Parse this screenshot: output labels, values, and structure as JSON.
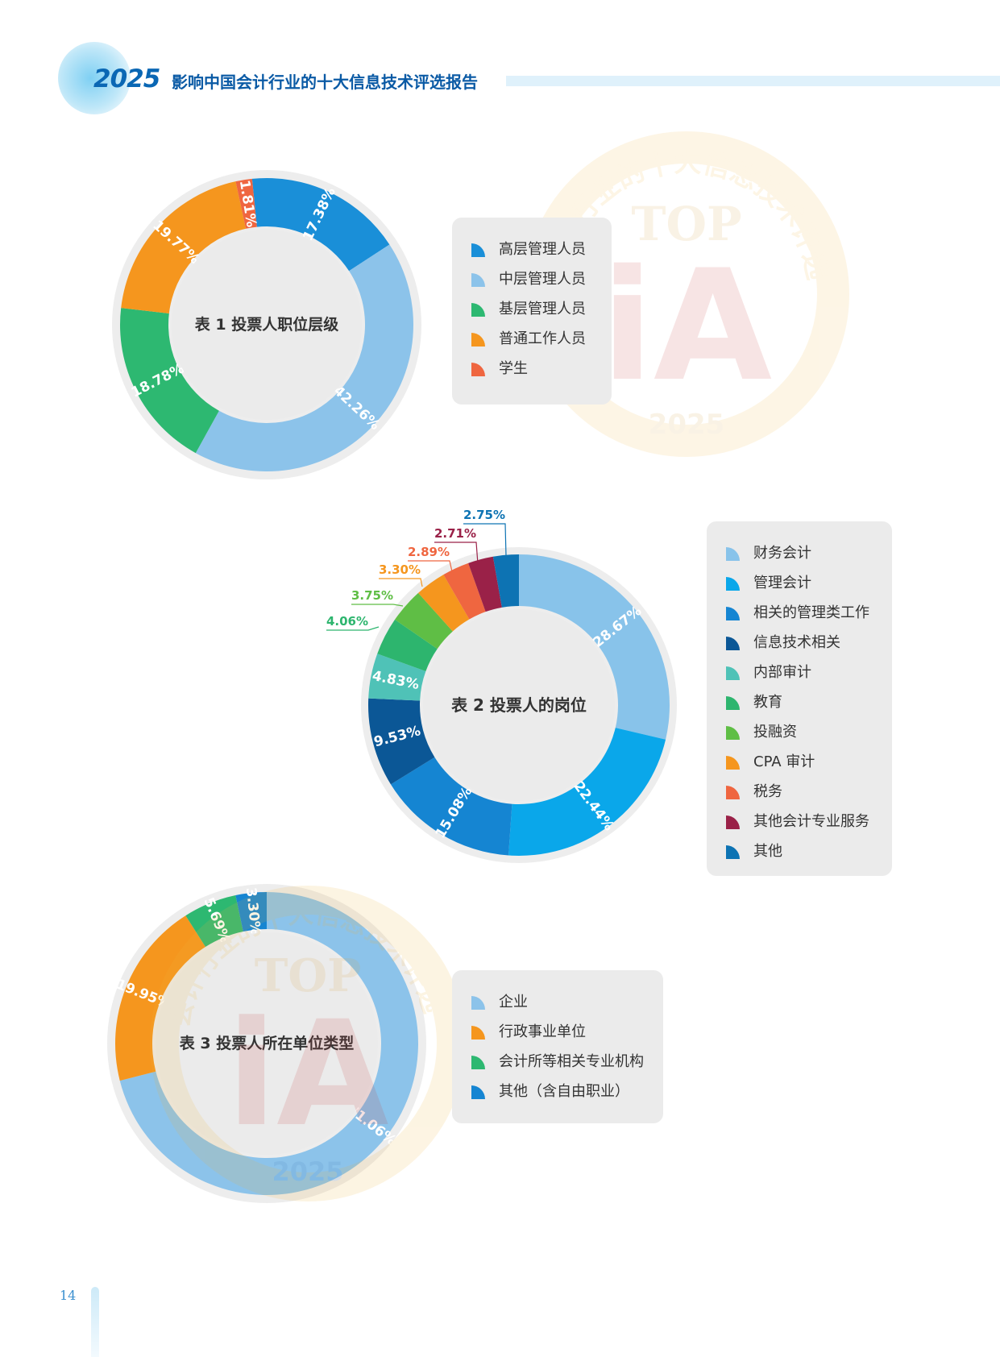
{
  "header": {
    "year": "2025",
    "title": "影响中国会计行业的十大信息技术评选报告"
  },
  "page_number": "14",
  "watermark": {
    "ring_text": "会计行业的十大信息技术评选",
    "logo_text_top": "TOP",
    "logo_text_main": "iA",
    "logo_year": "2025"
  },
  "chart_data": [
    {
      "type": "donut",
      "title": "表 1 投票人职位层级",
      "series": [
        {
          "name": "高层管理人员",
          "value": 17.38,
          "label": "17.38%",
          "color": "#1a8fd8"
        },
        {
          "name": "中层管理人员",
          "value": 42.26,
          "label": "42.26%",
          "color": "#8cc3ea"
        },
        {
          "name": "基层管理人员",
          "value": 18.78,
          "label": "18.78%",
          "color": "#2db871"
        },
        {
          "name": "普通工作人员",
          "value": 19.77,
          "label": "19.77%",
          "color": "#f5961e"
        },
        {
          "name": "学生",
          "value": 1.81,
          "label": "1.81%",
          "color": "#ef6640"
        }
      ]
    },
    {
      "type": "donut",
      "title": "表 2 投票人的岗位",
      "series": [
        {
          "name": "财务会计",
          "value": 28.67,
          "label": "28.67%",
          "color": "#88c3ea"
        },
        {
          "name": "管理会计",
          "value": 22.44,
          "label": "22.44%",
          "color": "#0aa7ea"
        },
        {
          "name": "相关的管理类工作",
          "value": 15.08,
          "label": "15.08%",
          "color": "#1585d2"
        },
        {
          "name": "信息技术相关",
          "value": 9.53,
          "label": "9.53%",
          "color": "#0b5796"
        },
        {
          "name": "内部审计",
          "value": 4.83,
          "label": "4.83%",
          "color": "#4fc2b7"
        },
        {
          "name": "教育",
          "value": 4.06,
          "label": "4.06%",
          "color": "#2db56e"
        },
        {
          "name": "投融资",
          "value": 3.75,
          "label": "3.75%",
          "color": "#5fbe45"
        },
        {
          "name": "CPA 审计",
          "value": 3.3,
          "label": "3.30%",
          "color": "#f5961e"
        },
        {
          "name": "税务",
          "value": 2.89,
          "label": "2.89%",
          "color": "#ef6640"
        },
        {
          "name": "其他会计专业服务",
          "value": 2.71,
          "label": "2.71%",
          "color": "#9a2148"
        },
        {
          "name": "其他",
          "value": 2.75,
          "label": "2.75%",
          "color": "#0d73b3"
        }
      ]
    },
    {
      "type": "donut",
      "title": "表 3 投票人所在单位类型",
      "series": [
        {
          "name": "企业",
          "value": 71.06,
          "label": "71.06%",
          "color": "#8cc3ea"
        },
        {
          "name": "行政事业单位",
          "value": 19.95,
          "label": "19.95%",
          "color": "#f5961e"
        },
        {
          "name": "会计所等相关专业机构",
          "value": 5.69,
          "label": "5.69%",
          "color": "#2db871"
        },
        {
          "name": "其他（含自由职业）",
          "value": 3.3,
          "label": "3.30%",
          "color": "#1585d2"
        }
      ]
    }
  ]
}
